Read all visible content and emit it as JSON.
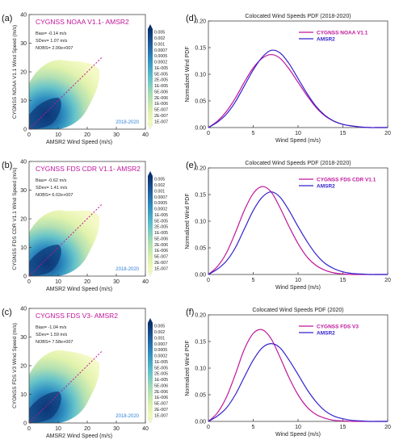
{
  "chart_data": [
    {
      "type": "heatmap",
      "panel_label": "(a)",
      "title": "CYGNSS NOAA V1.1- AMSR2",
      "xlabel": "AMSR2 Wind Speed (m/s)",
      "ylabel": "CYGNSS NOAA V1.1 Wind Speed (m/s)",
      "xlim": [
        0,
        40
      ],
      "ylim": [
        0,
        40
      ],
      "xticks": [
        "0",
        "10",
        "20",
        "30",
        "40"
      ],
      "yticks": [
        "0",
        "10",
        "20",
        "30",
        "40"
      ],
      "stats": [
        "Bias= -0.14 m/s",
        "SDev= 1.07 m/s",
        "NOBS= 2.00e+007"
      ],
      "period": "2018-2020",
      "colorbar_labels": [
        "0.005",
        "0.002",
        "0.001",
        "0.0007",
        "0.0005",
        "0.0002",
        "1E-005",
        "5E-005",
        "2E-005",
        "1E-005",
        "5E-006",
        "2E-006",
        "1E-006",
        "5E-007",
        "2E-007",
        "1E-007"
      ],
      "fit_line": {
        "x": [
          0,
          25
        ],
        "y": [
          0,
          25
        ]
      },
      "colors": {
        "title": "#c0169b",
        "period": "#2e7fd6",
        "fit": "#c0169b"
      }
    },
    {
      "type": "heatmap",
      "panel_label": "(b)",
      "title": "CYGNSS FDS CDR V1.1- AMSR2",
      "xlabel": "AMSR2 Wind Speed (m/s)",
      "ylabel": "CYGNSS FDS CDR V1.1 Wind Speed (m/s)",
      "xlim": [
        0,
        40
      ],
      "ylim": [
        0,
        40
      ],
      "xticks": [
        "0",
        "10",
        "20",
        "30",
        "40"
      ],
      "yticks": [
        "0",
        "10",
        "20",
        "30",
        "40"
      ],
      "stats": [
        "Bias= -0.62 m/s",
        "SDev= 1.41 m/s",
        "NOBS= 6.02e+007"
      ],
      "period": "2018-2020",
      "colorbar_labels": [
        "0.005",
        "0.002",
        "0.001",
        "0.0007",
        "0.0005",
        "0.0002",
        "1E-005",
        "5E-005",
        "2E-005",
        "1E-005",
        "5E-006",
        "2E-006",
        "1E-006",
        "5E-007",
        "2E-007",
        "1E-007"
      ],
      "fit_line": {
        "x": [
          0,
          25
        ],
        "y": [
          0,
          25
        ]
      },
      "colors": {
        "title": "#c0169b",
        "period": "#2e7fd6",
        "fit": "#c0169b"
      }
    },
    {
      "type": "heatmap",
      "panel_label": "(c)",
      "title": "CYGNSS FDS V3- AMSR2",
      "xlabel": "AMSR2 Wind Speed (m/s)",
      "ylabel": "CYGNSS FDS V3 Wind Speed (m/s)",
      "xlim": [
        0,
        40
      ],
      "ylim": [
        0,
        40
      ],
      "xticks": [
        "0",
        "10",
        "20",
        "30",
        "40"
      ],
      "yticks": [
        "0",
        "10",
        "20",
        "30",
        "40"
      ],
      "stats": [
        "Bias= -1.04 m/s",
        "SDev= 1.59 m/s",
        "NOBS= 7.58e+007"
      ],
      "period": "2018-2020",
      "colorbar_labels": [
        "0.005",
        "0.002",
        "0.001",
        "0.0007",
        "0.0005",
        "0.0002",
        "1E-005",
        "5E-005",
        "2E-005",
        "1E-005",
        "5E-006",
        "2E-006",
        "1E-006",
        "5E-007",
        "2E-007",
        "1E-007"
      ],
      "fit_line": {
        "x": [
          0,
          25
        ],
        "y": [
          0,
          25
        ]
      },
      "colors": {
        "title": "#c0169b",
        "period": "#2e7fd6",
        "fit": "#c0169b"
      }
    },
    {
      "type": "line",
      "panel_label": "(d)",
      "title": "Colocated Wind Speeds PDF (2018-2020)",
      "xlabel": "Wind Speed (m/s)",
      "ylabel": "Normalized Wind PDF",
      "xlim": [
        0,
        20
      ],
      "ylim": [
        0,
        0.2
      ],
      "xticks": [
        "0",
        "5",
        "10",
        "15",
        "20"
      ],
      "yticks": [
        "0.00",
        "0.05",
        "0.10",
        "0.15",
        "0.20"
      ],
      "x": [
        0,
        1,
        2,
        3,
        4,
        5,
        6,
        7,
        8,
        9,
        10,
        11,
        12,
        13,
        14,
        15,
        16,
        17,
        18,
        19,
        20
      ],
      "series": [
        {
          "name": "CYGNSS NOAA V1.1",
          "color": "#c0169b",
          "values": [
            0.0,
            0.012,
            0.03,
            0.055,
            0.085,
            0.112,
            0.13,
            0.137,
            0.13,
            0.11,
            0.085,
            0.06,
            0.038,
            0.022,
            0.012,
            0.006,
            0.003,
            0.001,
            0.0,
            0.0,
            0.0
          ]
        },
        {
          "name": "AMSR2",
          "color": "#3322cc",
          "values": [
            0.0,
            0.01,
            0.025,
            0.048,
            0.078,
            0.108,
            0.132,
            0.145,
            0.14,
            0.12,
            0.092,
            0.064,
            0.04,
            0.023,
            0.012,
            0.006,
            0.003,
            0.001,
            0.0,
            0.0,
            0.0
          ]
        }
      ]
    },
    {
      "type": "line",
      "panel_label": "(e)",
      "title": "Colocated Wind Speeds PDF (2018-2020)",
      "xlabel": "Wind Speed (m/s)",
      "ylabel": "Normalized Wind PDF",
      "xlim": [
        0,
        20
      ],
      "ylim": [
        0,
        0.2
      ],
      "xticks": [
        "0",
        "5",
        "10",
        "15",
        "20"
      ],
      "yticks": [
        "0.00",
        "0.05",
        "0.10",
        "0.15",
        "0.20"
      ],
      "x": [
        0,
        1,
        2,
        3,
        4,
        5,
        6,
        7,
        8,
        9,
        10,
        11,
        12,
        13,
        14,
        15,
        16,
        17,
        18,
        19,
        20
      ],
      "series": [
        {
          "name": "CYGNSS FDS CDR V1.1",
          "color": "#c0169b",
          "values": [
            0.0,
            0.015,
            0.04,
            0.078,
            0.12,
            0.152,
            0.165,
            0.155,
            0.125,
            0.09,
            0.058,
            0.033,
            0.017,
            0.008,
            0.003,
            0.001,
            0.0,
            0.0,
            0.0,
            0.0,
            0.0
          ]
        },
        {
          "name": "AMSR2",
          "color": "#3322cc",
          "values": [
            0.0,
            0.01,
            0.025,
            0.05,
            0.085,
            0.12,
            0.145,
            0.155,
            0.145,
            0.12,
            0.09,
            0.062,
            0.038,
            0.021,
            0.011,
            0.005,
            0.002,
            0.001,
            0.0,
            0.0,
            0.0
          ]
        }
      ]
    },
    {
      "type": "line",
      "panel_label": "(f)",
      "title": "Colocated Wind Speeds PDF (2020)",
      "xlabel": "Wind Speed (m/s)",
      "ylabel": "Normalized Wind PDF",
      "xlim": [
        0,
        20
      ],
      "ylim": [
        0,
        0.2
      ],
      "xticks": [
        "0",
        "5",
        "10",
        "15",
        "20"
      ],
      "yticks": [
        "0.00",
        "0.05",
        "0.10",
        "0.15",
        "0.20"
      ],
      "x": [
        0,
        1,
        2,
        3,
        4,
        5,
        6,
        7,
        8,
        9,
        10,
        11,
        12,
        13,
        14,
        15,
        16,
        17,
        18,
        19,
        20
      ],
      "series": [
        {
          "name": "CYGNSS FDS V3",
          "color": "#c0169b",
          "values": [
            0.0,
            0.016,
            0.045,
            0.088,
            0.135,
            0.165,
            0.172,
            0.155,
            0.12,
            0.082,
            0.05,
            0.027,
            0.013,
            0.006,
            0.002,
            0.001,
            0.0,
            0.0,
            0.0,
            0.0,
            0.0
          ]
        },
        {
          "name": "AMSR2",
          "color": "#3322cc",
          "values": [
            0.0,
            0.01,
            0.025,
            0.05,
            0.083,
            0.115,
            0.138,
            0.146,
            0.138,
            0.115,
            0.088,
            0.06,
            0.037,
            0.02,
            0.01,
            0.005,
            0.002,
            0.001,
            0.0,
            0.0,
            0.0
          ]
        }
      ]
    }
  ]
}
